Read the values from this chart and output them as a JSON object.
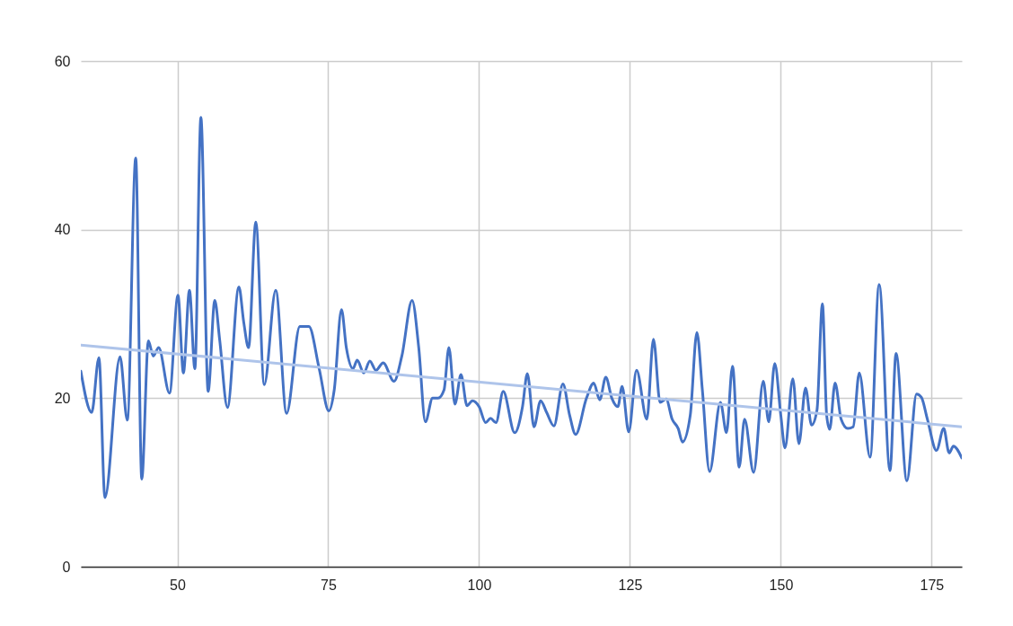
{
  "chart_data": {
    "type": "line",
    "xlim": [
      34,
      180
    ],
    "ylim": [
      0,
      60
    ],
    "xticks": [
      50,
      75,
      100,
      125,
      150,
      175
    ],
    "yticks": [
      0,
      20,
      40,
      60
    ],
    "grid": true,
    "line_style": "solid",
    "marker": "none",
    "series": [
      {
        "color": "#4472c4",
        "x": [
          34,
          35.8,
          37,
          38,
          40.5,
          41.7,
          43.1,
          44.1,
          45.2,
          46,
          46.9,
          48.7,
          50.1,
          51,
          52,
          52.9,
          53.9,
          55.1,
          56.2,
          57,
          58.3,
          60.2,
          61,
          61.8,
          63,
          64.4,
          66.3,
          68.1,
          70.3,
          71.8,
          73.5,
          75.1,
          76,
          77.2,
          78,
          79.1,
          79.8,
          80.9,
          81.9,
          82.9,
          84.1,
          85.9,
          87.2,
          88.9,
          90,
          91.1,
          92.3,
          93.2,
          94.2,
          95,
          96,
          97,
          98,
          98.9,
          100,
          101.1,
          101.9,
          102.8,
          104,
          105.9,
          107.2,
          108,
          109.1,
          110.2,
          111.2,
          112.4,
          113.9,
          115,
          116,
          117.8,
          119,
          120,
          121,
          122,
          123,
          123.7,
          124.8,
          126.1,
          127.8,
          128.9,
          130,
          131,
          132,
          133,
          133.7,
          135,
          136.1,
          137,
          138.2,
          140,
          141,
          142,
          143.1,
          144,
          145.5,
          147.1,
          148,
          149,
          150,
          150.7,
          152,
          153,
          154.1,
          155.1,
          156,
          156.9,
          157.6,
          158.1,
          159,
          160,
          161.1,
          162,
          163,
          164.8,
          166.3,
          168.1,
          169.1,
          170.9,
          172.5,
          173.3,
          174.3,
          175.8,
          177,
          177.9,
          178.6,
          180
        ],
        "values": [
          23.2,
          18.3,
          24.8,
          8.2,
          24.9,
          17.4,
          48.5,
          10.4,
          26.8,
          25,
          26,
          20.6,
          32.2,
          23,
          32.8,
          23.5,
          53.3,
          20.8,
          31.6,
          27,
          18.9,
          33.2,
          29,
          26,
          40.9,
          21.6,
          32.8,
          18.2,
          28.5,
          28.5,
          23.5,
          18.5,
          21,
          30.5,
          26,
          23.5,
          24.5,
          23,
          24.4,
          23.3,
          24.2,
          22,
          25,
          31.6,
          26,
          17.2,
          20,
          20,
          21,
          26,
          19.3,
          22.8,
          19.1,
          19.7,
          19,
          17.1,
          17.6,
          17.1,
          20.8,
          15.9,
          19,
          22.9,
          16.6,
          19.7,
          18.3,
          16.7,
          21.7,
          18,
          15.7,
          20,
          21.8,
          19.8,
          22.5,
          20,
          19,
          21.4,
          16,
          23.3,
          17.5,
          27,
          19.5,
          19.9,
          17.5,
          16.4,
          14.8,
          18,
          27.8,
          21,
          11.3,
          19.5,
          15.9,
          23.8,
          11.8,
          17.5,
          11.2,
          22,
          17.2,
          24.1,
          18,
          14.1,
          22.3,
          14.6,
          21.2,
          16.8,
          18.6,
          31.2,
          18,
          16.3,
          21.8,
          17.5,
          16.4,
          16.6,
          23,
          13,
          33.5,
          11.4,
          25.3,
          10.2,
          20.5,
          20.1,
          17.5,
          13.8,
          16.4,
          13.5,
          14.3,
          12.9
        ]
      },
      {
        "type": "line",
        "color": "#aec4ea",
        "x": [
          34,
          180
        ],
        "values": [
          26.3,
          16.6
        ]
      }
    ]
  }
}
